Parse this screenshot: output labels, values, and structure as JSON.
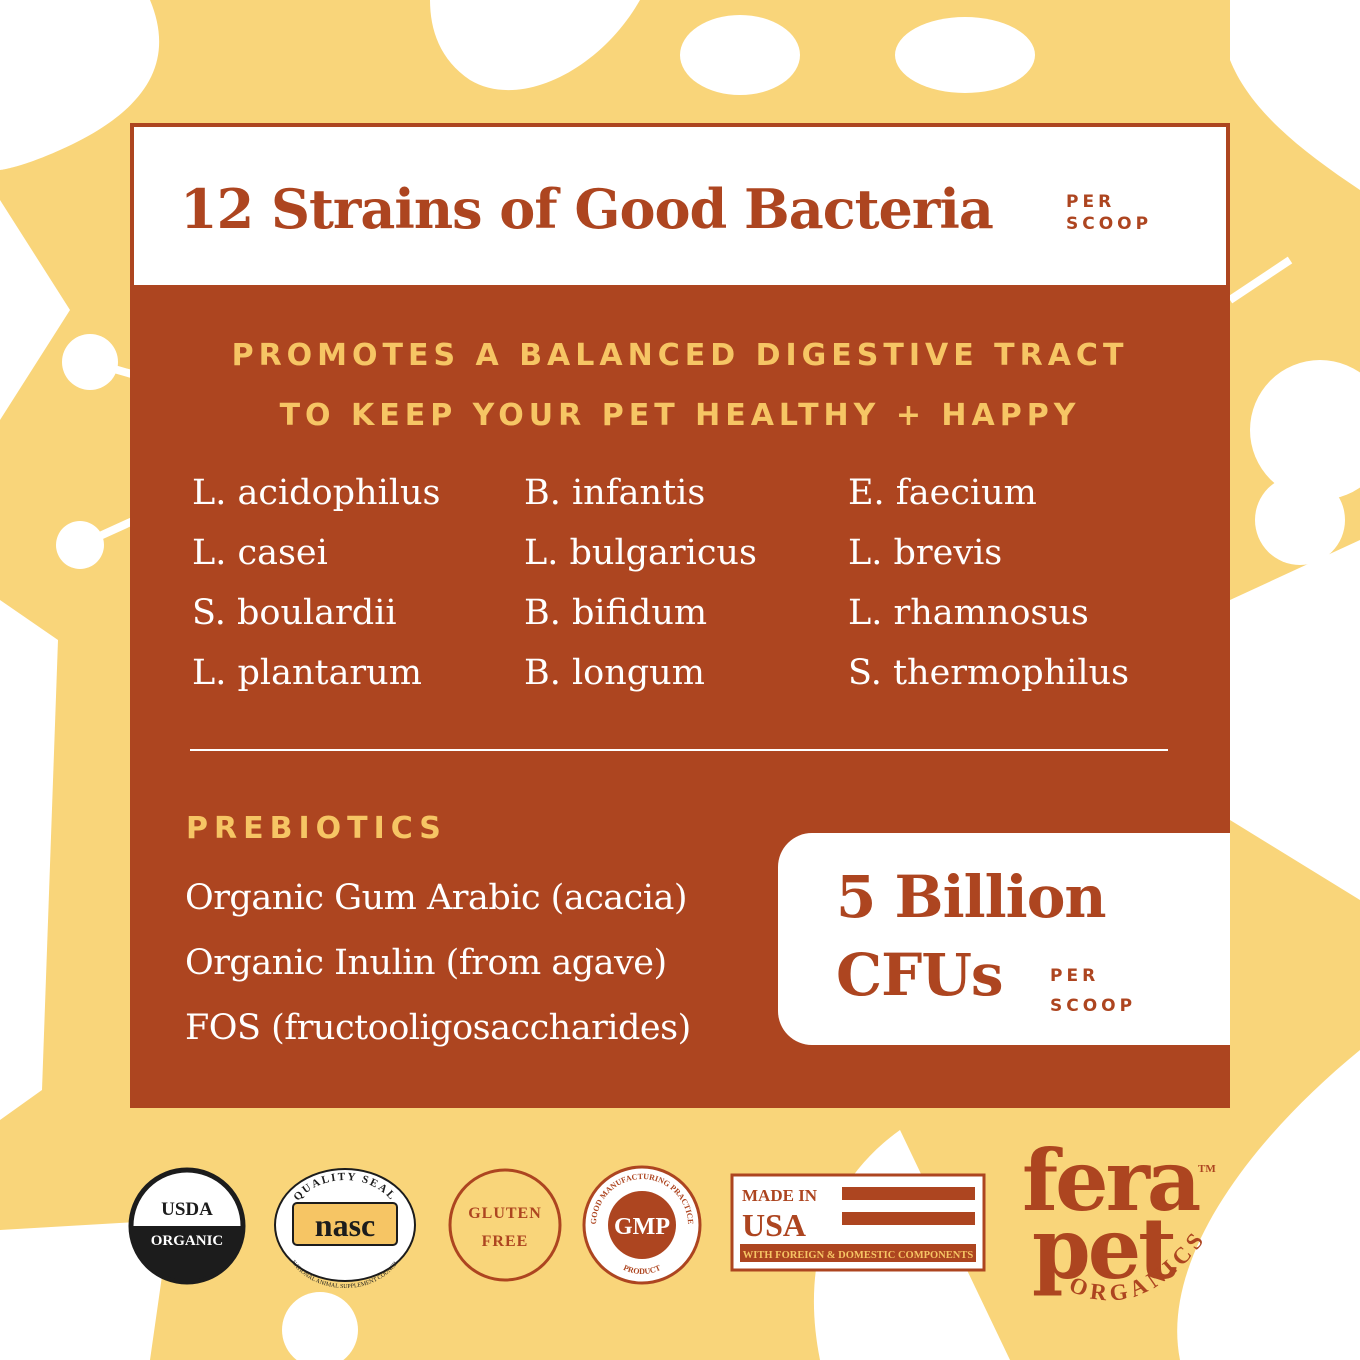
{
  "colors": {
    "rust": "#ad4520",
    "gold": "#f6c564",
    "background_yellow": "#f9d57a",
    "white": "#ffffff"
  },
  "header": {
    "title": "12 Strains of Good Bacteria",
    "per": "PER",
    "scoop": "SCOOP"
  },
  "tagline": {
    "line1": "PROMOTES A BALANCED DIGESTIVE TRACT",
    "line2": "TO KEEP YOUR PET HEALTHY + HAPPY"
  },
  "strains": {
    "col1": [
      "L. acidophilus",
      "L. casei",
      "S. boulardii",
      "L. plantarum"
    ],
    "col2": [
      "B. infantis",
      "L. bulgaricus",
      "B. bifidum",
      "B. longum"
    ],
    "col3": [
      "E. faecium",
      "L. brevis",
      "L. rhamnosus",
      "S. thermophilus"
    ]
  },
  "prebiotics": {
    "heading": "PREBIOTICS",
    "items": [
      "Organic Gum Arabic (acacia)",
      "Organic Inulin (from agave)",
      "FOS (fructooligosaccharides)"
    ]
  },
  "cfu": {
    "line1": "5 Billion",
    "line2": "CFUs",
    "per": "PER",
    "scoop": "SCOOP"
  },
  "badges": {
    "usda": {
      "line1": "USDA",
      "line2": "ORGANIC"
    },
    "nasc": {
      "arc_top": "QUALITY SEAL",
      "mark": "nasc",
      "arc_bottom": "NATIONAL ANIMAL SUPPLEMENT COUNCIL"
    },
    "gluten": {
      "line1": "GLUTEN",
      "line2": "FREE"
    },
    "gmp": {
      "arc_top": "GOOD MANUFACTURING PRACTICE",
      "mark": "GMP",
      "arc_bottom": "PRODUCT"
    },
    "usa": {
      "line1": "MADE IN",
      "line2": "USA",
      "line3": "WITH FOREIGN & DOMESTIC COMPONENTS"
    }
  },
  "brand": {
    "word1": "fera",
    "tm": "TM",
    "word2": "pet",
    "arc": "ORGANICS"
  }
}
